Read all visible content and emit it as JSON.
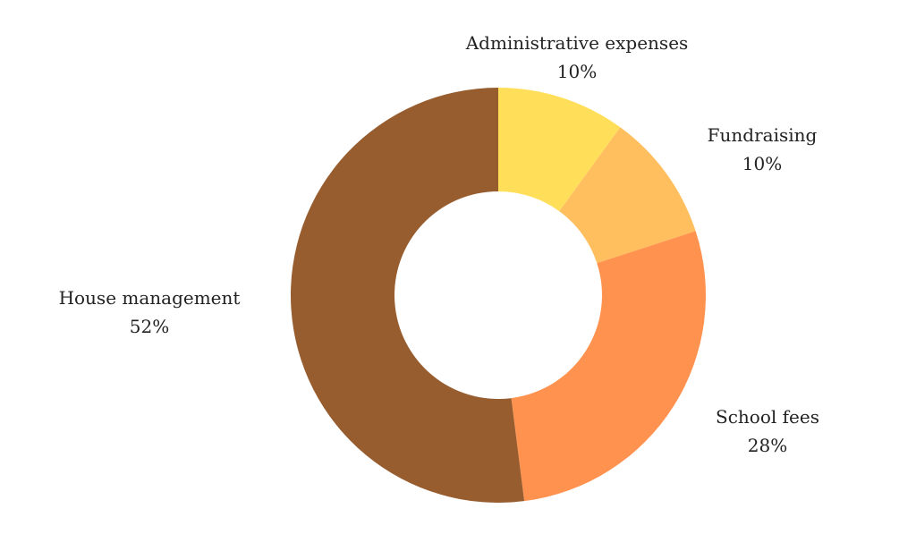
{
  "chart_data": {
    "type": "pie",
    "donut": true,
    "title": "",
    "legend": "none",
    "slices": [
      {
        "label": "Administrative expenses",
        "value": 10,
        "display": "10%",
        "color": "#FFDF5A"
      },
      {
        "label": "Fundraising",
        "value": 10,
        "display": "10%",
        "color": "#FFBF5F"
      },
      {
        "label": "School fees",
        "value": 28,
        "display": "28%",
        "color": "#FF924E"
      },
      {
        "label": "House management",
        "value": 52,
        "display": "52%",
        "color": "#975D2F"
      }
    ]
  }
}
